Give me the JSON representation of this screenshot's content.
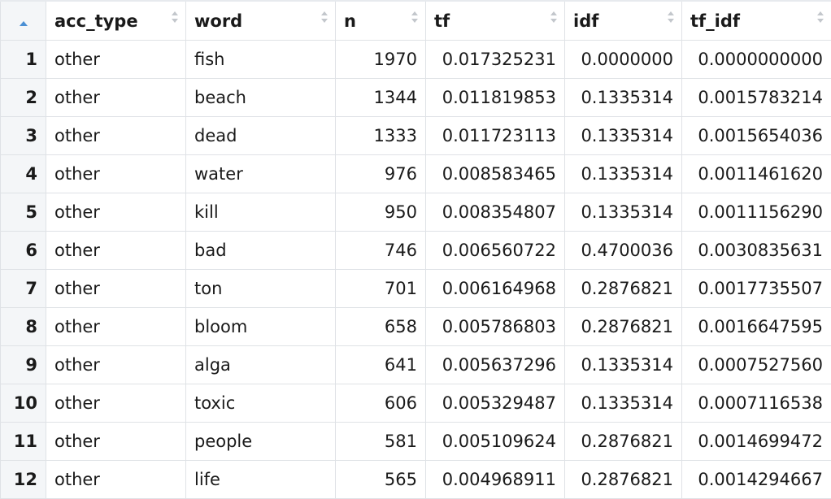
{
  "table": {
    "columns": [
      "acc_type",
      "word",
      "n",
      "tf",
      "idf",
      "tf_idf"
    ],
    "rows": [
      {
        "index": "1",
        "acc_type": "other",
        "word": "fish",
        "n": "1970",
        "tf": "0.017325231",
        "idf": "0.0000000",
        "tf_idf": "0.0000000000"
      },
      {
        "index": "2",
        "acc_type": "other",
        "word": "beach",
        "n": "1344",
        "tf": "0.011819853",
        "idf": "0.1335314",
        "tf_idf": "0.0015783214"
      },
      {
        "index": "3",
        "acc_type": "other",
        "word": "dead",
        "n": "1333",
        "tf": "0.011723113",
        "idf": "0.1335314",
        "tf_idf": "0.0015654036"
      },
      {
        "index": "4",
        "acc_type": "other",
        "word": "water",
        "n": "976",
        "tf": "0.008583465",
        "idf": "0.1335314",
        "tf_idf": "0.0011461620"
      },
      {
        "index": "5",
        "acc_type": "other",
        "word": "kill",
        "n": "950",
        "tf": "0.008354807",
        "idf": "0.1335314",
        "tf_idf": "0.0011156290"
      },
      {
        "index": "6",
        "acc_type": "other",
        "word": "bad",
        "n": "746",
        "tf": "0.006560722",
        "idf": "0.4700036",
        "tf_idf": "0.0030835631"
      },
      {
        "index": "7",
        "acc_type": "other",
        "word": "ton",
        "n": "701",
        "tf": "0.006164968",
        "idf": "0.2876821",
        "tf_idf": "0.0017735507"
      },
      {
        "index": "8",
        "acc_type": "other",
        "word": "bloom",
        "n": "658",
        "tf": "0.005786803",
        "idf": "0.2876821",
        "tf_idf": "0.0016647595"
      },
      {
        "index": "9",
        "acc_type": "other",
        "word": "alga",
        "n": "641",
        "tf": "0.005637296",
        "idf": "0.1335314",
        "tf_idf": "0.0007527560"
      },
      {
        "index": "10",
        "acc_type": "other",
        "word": "toxic",
        "n": "606",
        "tf": "0.005329487",
        "idf": "0.1335314",
        "tf_idf": "0.0007116538"
      },
      {
        "index": "11",
        "acc_type": "other",
        "word": "people",
        "n": "581",
        "tf": "0.005109624",
        "idf": "0.2876821",
        "tf_idf": "0.0014699472"
      },
      {
        "index": "12",
        "acc_type": "other",
        "word": "life",
        "n": "565",
        "tf": "0.004968911",
        "idf": "0.2876821",
        "tf_idf": "0.0014294667"
      }
    ]
  },
  "colors": {
    "sort_active": "#4a8fd4",
    "sort_inactive": "#c3c7cc",
    "index_bg": "#f4f6f8",
    "border": "#dfe2e6"
  },
  "icons": {
    "index_sort": "sort-ascending-icon",
    "column_sort": "sort-both-icon"
  }
}
